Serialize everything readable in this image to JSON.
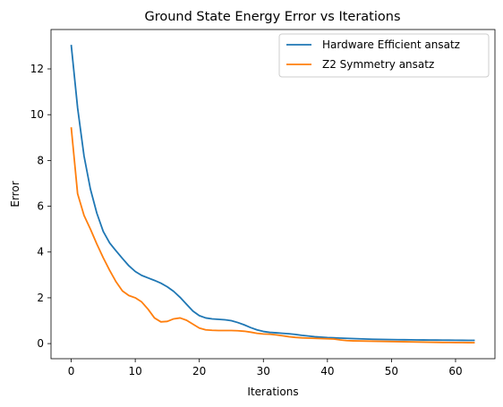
{
  "chart_data": {
    "type": "line",
    "title": "Ground State Energy Error vs Iterations",
    "xlabel": "Iterations",
    "ylabel": "Error",
    "xlim": [
      -3.15,
      66.15
    ],
    "ylim": [
      -0.66,
      13.72
    ],
    "xticks": [
      0,
      10,
      20,
      30,
      40,
      50,
      60
    ],
    "yticks": [
      0,
      2,
      4,
      6,
      8,
      10,
      12
    ],
    "grid": false,
    "legend_position": "top-right",
    "x": [
      0,
      1,
      2,
      3,
      4,
      5,
      6,
      7,
      8,
      9,
      10,
      11,
      12,
      13,
      14,
      15,
      16,
      17,
      18,
      19,
      20,
      21,
      22,
      23,
      24,
      25,
      26,
      27,
      28,
      29,
      30,
      31,
      32,
      33,
      34,
      35,
      36,
      37,
      38,
      39,
      40,
      41,
      42,
      43,
      44,
      45,
      46,
      47,
      48,
      49,
      50,
      51,
      52,
      53,
      54,
      55,
      56,
      57,
      58,
      59,
      60,
      61,
      62,
      63
    ],
    "series": [
      {
        "name": "Hardware Efficient ansatz",
        "color": "#1f77b4",
        "values": [
          13.05,
          10.3,
          8.2,
          6.75,
          5.7,
          4.9,
          4.4,
          4.05,
          3.72,
          3.4,
          3.15,
          2.98,
          2.87,
          2.76,
          2.64,
          2.48,
          2.28,
          2.02,
          1.72,
          1.42,
          1.22,
          1.12,
          1.08,
          1.06,
          1.04,
          1.0,
          0.92,
          0.82,
          0.7,
          0.6,
          0.53,
          0.49,
          0.47,
          0.45,
          0.43,
          0.4,
          0.36,
          0.33,
          0.3,
          0.28,
          0.26,
          0.25,
          0.24,
          0.23,
          0.22,
          0.21,
          0.2,
          0.19,
          0.185,
          0.18,
          0.175,
          0.17,
          0.168,
          0.165,
          0.16,
          0.158,
          0.155,
          0.153,
          0.15,
          0.148,
          0.146,
          0.144,
          0.142,
          0.14
        ]
      },
      {
        "name": "Z2 Symmetry ansatz",
        "color": "#ff7f0e",
        "values": [
          9.45,
          6.55,
          5.6,
          5.0,
          4.35,
          3.75,
          3.2,
          2.7,
          2.3,
          2.1,
          2.0,
          1.82,
          1.5,
          1.12,
          0.95,
          0.97,
          1.08,
          1.12,
          1.02,
          0.85,
          0.68,
          0.6,
          0.58,
          0.57,
          0.57,
          0.57,
          0.56,
          0.54,
          0.5,
          0.45,
          0.42,
          0.41,
          0.38,
          0.34,
          0.3,
          0.27,
          0.25,
          0.24,
          0.23,
          0.22,
          0.21,
          0.2,
          0.16,
          0.13,
          0.12,
          0.115,
          0.11,
          0.105,
          0.1,
          0.095,
          0.09,
          0.085,
          0.08,
          0.075,
          0.07,
          0.065,
          0.06,
          0.055,
          0.05,
          0.048,
          0.046,
          0.044,
          0.042,
          0.04
        ]
      }
    ]
  }
}
